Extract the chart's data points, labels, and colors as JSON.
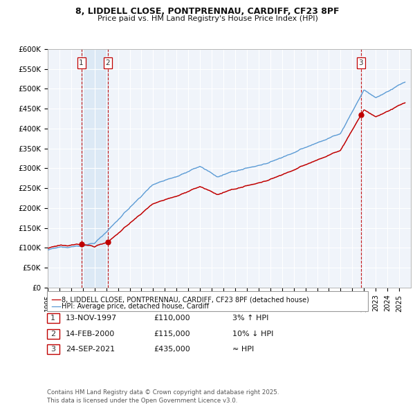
{
  "title1": "8, LIDDELL CLOSE, PONTPRENNAU, CARDIFF, CF23 8PF",
  "title2": "Price paid vs. HM Land Registry's House Price Index (HPI)",
  "ylabel_ticks": [
    "£0",
    "£50K",
    "£100K",
    "£150K",
    "£200K",
    "£250K",
    "£300K",
    "£350K",
    "£400K",
    "£450K",
    "£500K",
    "£550K",
    "£600K"
  ],
  "ytick_values": [
    0,
    50000,
    100000,
    150000,
    200000,
    250000,
    300000,
    350000,
    400000,
    450000,
    500000,
    550000,
    600000
  ],
  "hpi_color": "#5b9bd5",
  "price_color": "#c00000",
  "vline_color": "#c00000",
  "shade_color": "#dce9f5",
  "background_color": "#f0f4fa",
  "transactions": [
    {
      "num": 1,
      "date_x": 1997.87,
      "price": 110000,
      "label": "13-NOV-1997",
      "price_str": "£110,000",
      "note": "3% ↑ HPI"
    },
    {
      "num": 2,
      "date_x": 2000.12,
      "price": 115000,
      "label": "14-FEB-2000",
      "price_str": "£115,000",
      "note": "10% ↓ HPI"
    },
    {
      "num": 3,
      "date_x": 2021.73,
      "price": 435000,
      "label": "24-SEP-2021",
      "price_str": "£435,000",
      "note": "≈ HPI"
    }
  ],
  "legend_line1": "8, LIDDELL CLOSE, PONTPRENNAU, CARDIFF, CF23 8PF (detached house)",
  "legend_line2": "HPI: Average price, detached house, Cardiff",
  "footer": "Contains HM Land Registry data © Crown copyright and database right 2025.\nThis data is licensed under the Open Government Licence v3.0.",
  "xmin": 1995,
  "xmax": 2026,
  "ymin": 0,
  "ymax": 600000
}
